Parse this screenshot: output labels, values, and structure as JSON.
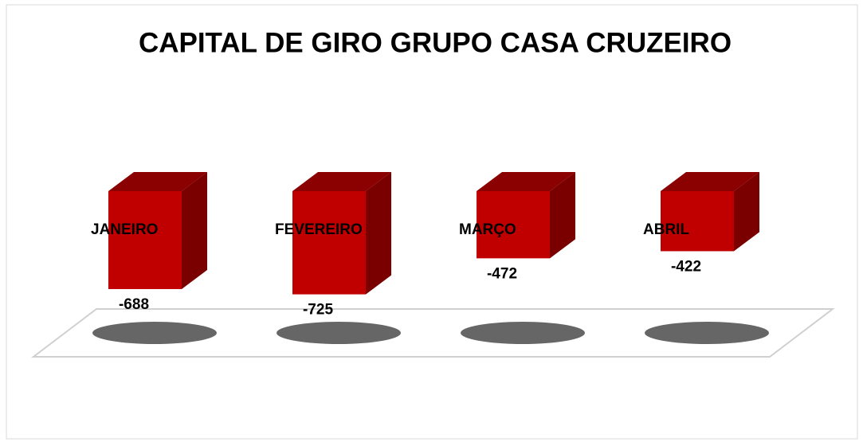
{
  "chart_data": {
    "type": "bar3d",
    "title": "CAPITAL DE GIRO GRUPO CASA CRUZEIRO",
    "categories": [
      "JANEIRO",
      "FEVEREIRO",
      "MARÇO",
      "ABRIL"
    ],
    "values": [
      -688,
      -725,
      -472,
      -422
    ],
    "color": "#c00000",
    "ylim": [
      -800,
      0
    ]
  }
}
